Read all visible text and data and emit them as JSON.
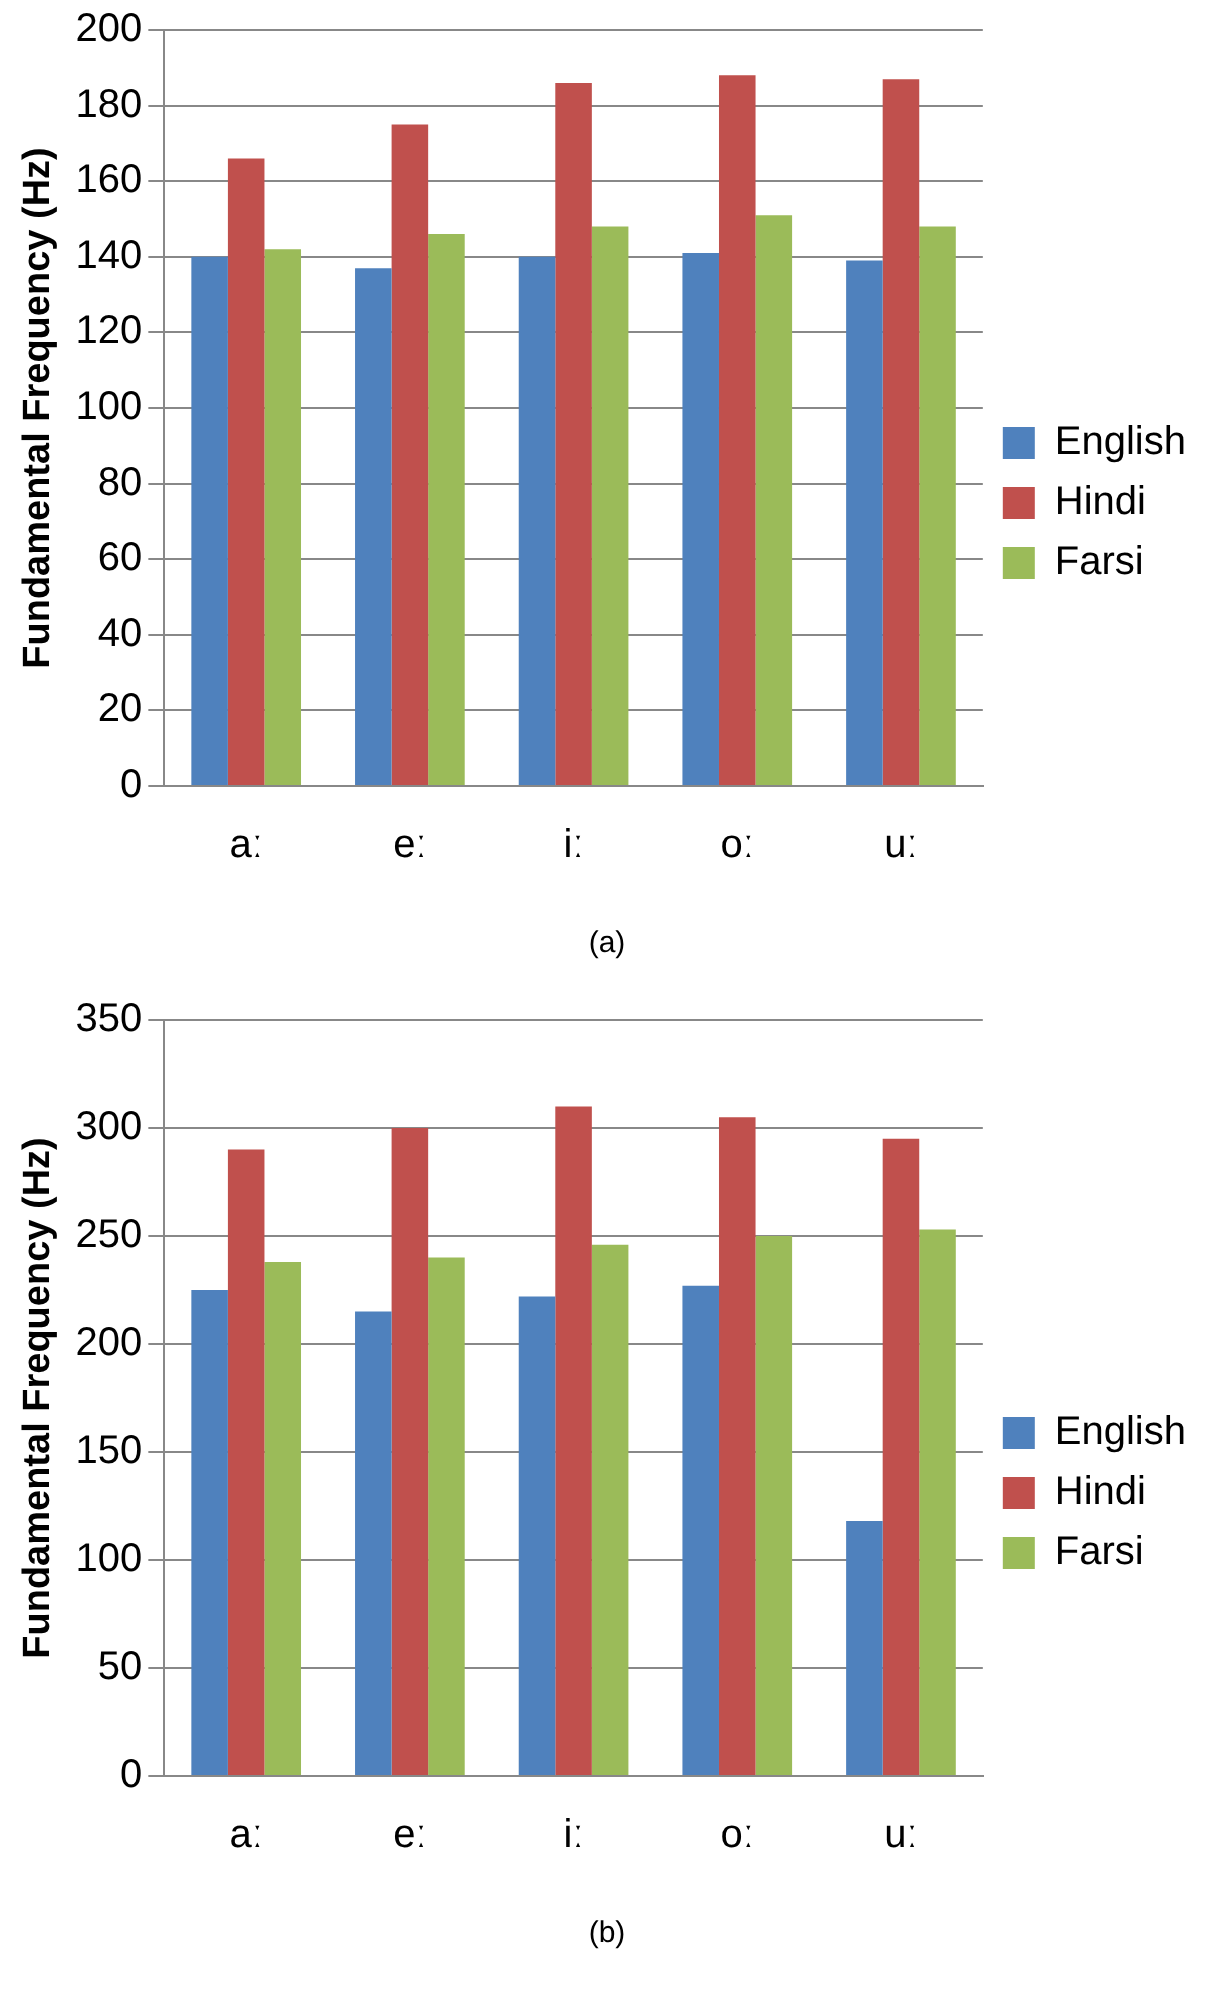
{
  "chart_data": [
    {
      "type": "bar",
      "title": "(a)",
      "ylabel": "Fundamental Frequency (Hz)",
      "categories": [
        "aː",
        "eː",
        "iː",
        "oː",
        "uː"
      ],
      "series": [
        {
          "name": "English",
          "color": "#4f81bd",
          "values": [
            140,
            137,
            140,
            141,
            139
          ]
        },
        {
          "name": "Hindi",
          "color": "#c0504d",
          "values": [
            166,
            175,
            186,
            188,
            187
          ]
        },
        {
          "name": "Farsi",
          "color": "#9bbb59",
          "values": [
            142,
            146,
            148,
            151,
            148
          ]
        }
      ],
      "ylim": [
        0,
        200
      ],
      "yticks": [
        0,
        20,
        40,
        60,
        80,
        100,
        120,
        140,
        160,
        180,
        200
      ],
      "grid": "y",
      "legend": "right"
    },
    {
      "type": "bar",
      "title": "(b)",
      "ylabel": "Fundamental Frequency (Hz)",
      "categories": [
        "aː",
        "eː",
        "iː",
        "oː",
        "uː"
      ],
      "series": [
        {
          "name": "English",
          "color": "#4f81bd",
          "values": [
            225,
            215,
            222,
            227,
            118
          ]
        },
        {
          "name": "Hindi",
          "color": "#c0504d",
          "values": [
            290,
            300,
            310,
            305,
            295
          ]
        },
        {
          "name": "Farsi",
          "color": "#9bbb59",
          "values": [
            238,
            240,
            246,
            250,
            253
          ]
        }
      ],
      "ylim": [
        0,
        350
      ],
      "yticks": [
        0,
        50,
        100,
        150,
        200,
        250,
        300,
        350
      ],
      "grid": "y",
      "legend": "right"
    }
  ]
}
